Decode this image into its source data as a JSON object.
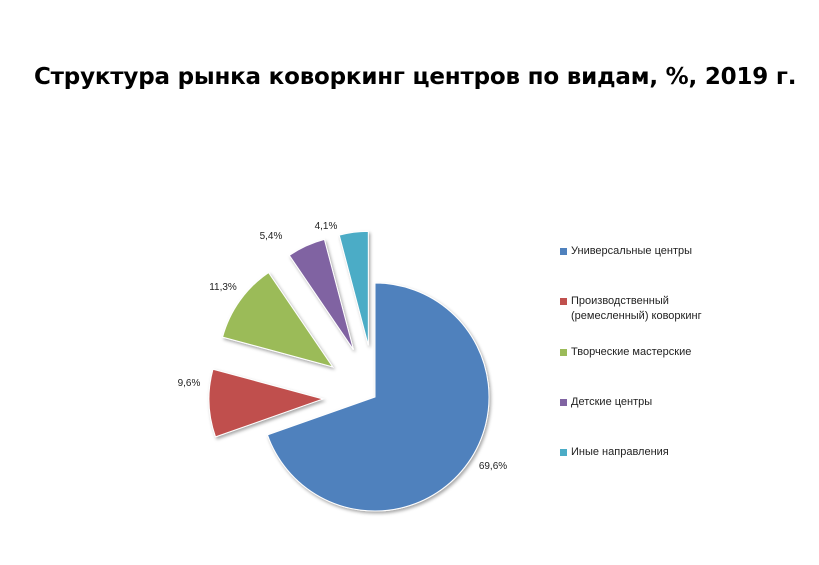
{
  "chart_data": {
    "type": "pie",
    "title": "Структура рынка коворкинг центров по видам, %, 2019 г.",
    "slices": [
      {
        "name": "Универсальные центры",
        "value": 69.6,
        "label": "69,6%",
        "color": "#4F81BD"
      },
      {
        "name": "Производственный\n(ремесленный)  коворкинг",
        "value": 9.6,
        "label": "9,6%",
        "color": "#C0504D"
      },
      {
        "name": " Творческие  мастерские",
        "value": 11.3,
        "label": "11,3%",
        "color": "#9BBB59"
      },
      {
        "name": "Детские центры",
        "value": 5.4,
        "label": "5,4%",
        "color": "#8064A2"
      },
      {
        "name": "Иные направления",
        "value": 4.1,
        "label": "4,1%",
        "color": "#4BACC6"
      }
    ],
    "legend_position": "right"
  }
}
